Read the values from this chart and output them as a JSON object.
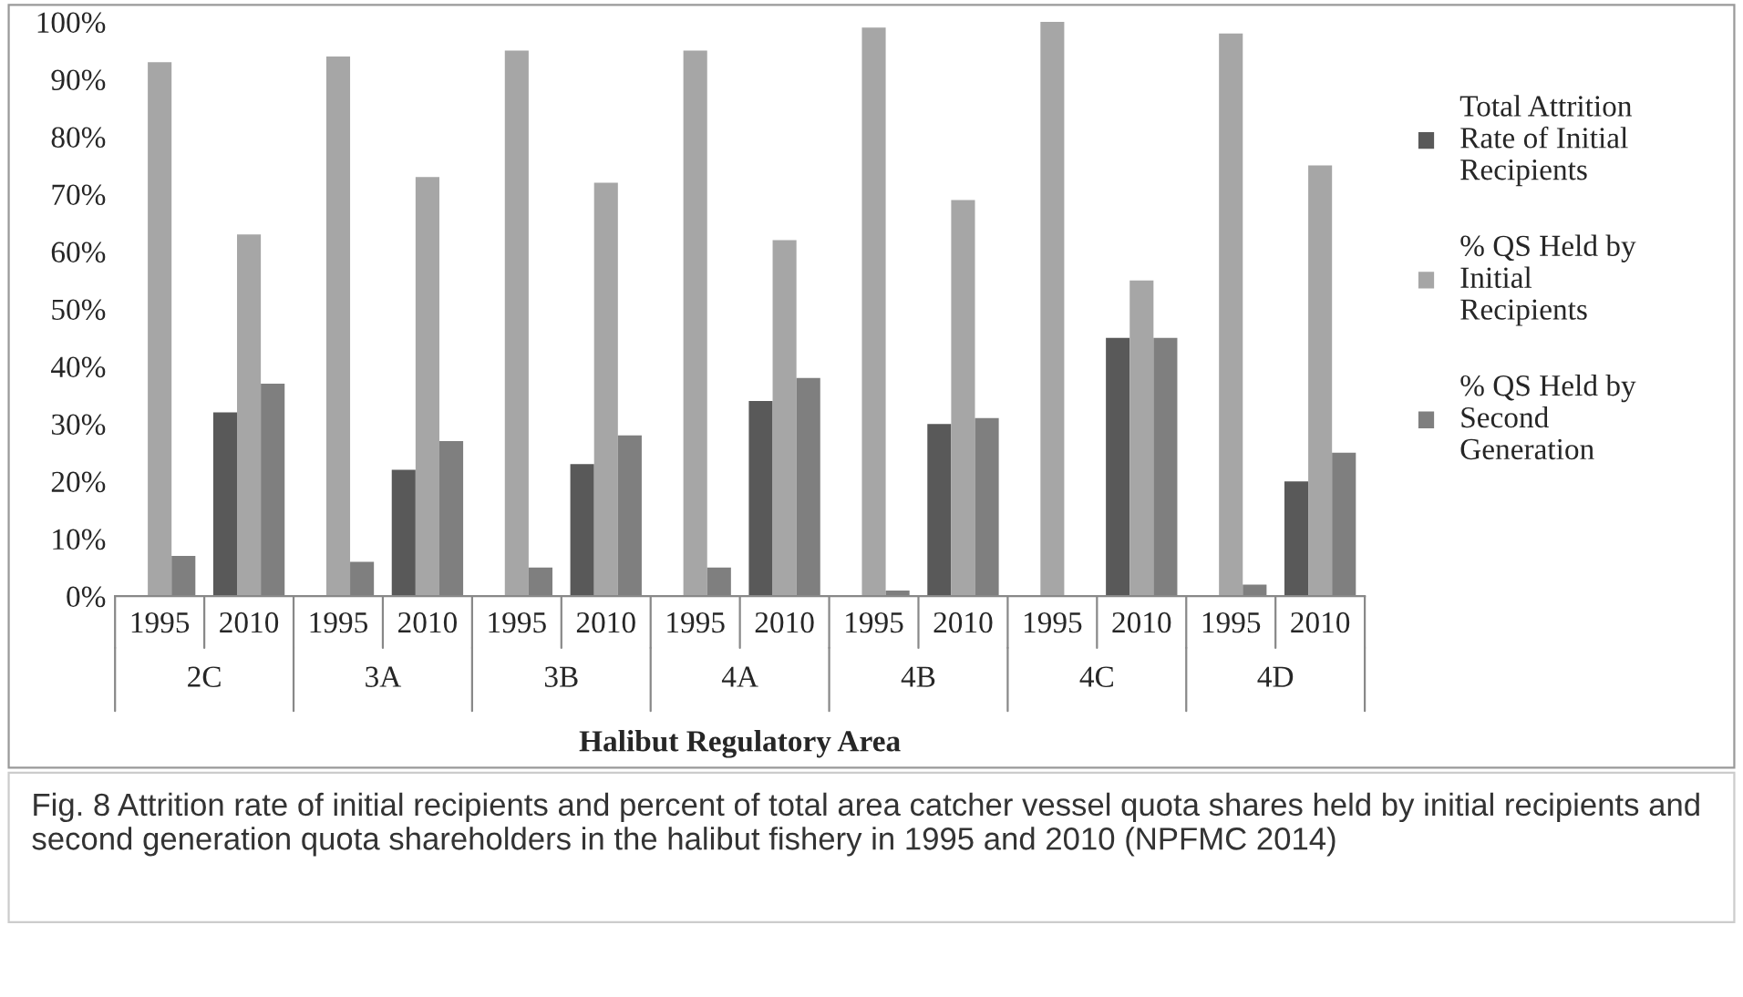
{
  "chart_data": {
    "type": "bar",
    "xlabel": "Halibut Regulatory Area",
    "categories": [
      "1995",
      "2010",
      "1995",
      "2010",
      "1995",
      "2010",
      "1995",
      "2010",
      "1995",
      "2010",
      "1995",
      "2010",
      "1995",
      "2010"
    ],
    "series": [
      {
        "name": "Total Attrition\nRate of Initial\nRecipients",
        "color": "#595959",
        "values": [
          0,
          32,
          0,
          22,
          0,
          23,
          0,
          34,
          0,
          30,
          0,
          45,
          0,
          20
        ]
      },
      {
        "name": "% QS Held by\nInitial\nRecipients",
        "color": "#a6a6a6",
        "values": [
          93,
          63,
          94,
          73,
          95,
          72,
          95,
          62,
          99,
          69,
          100,
          55,
          98,
          75
        ]
      },
      {
        "name": "% QS Held by\nSecond\nGeneration",
        "color": "#7f7f7f",
        "values": [
          7,
          37,
          6,
          27,
          5,
          28,
          5,
          38,
          1,
          31,
          0,
          45,
          2,
          25
        ]
      }
    ],
    "ylim": [
      0,
      100
    ],
    "yticks": [
      {
        "value": 0,
        "label": "0%"
      },
      {
        "value": 10,
        "label": "10%"
      },
      {
        "value": 20,
        "label": "20%"
      },
      {
        "value": 30,
        "label": "30%"
      },
      {
        "value": 40,
        "label": "40%"
      },
      {
        "value": 50,
        "label": "50%"
      },
      {
        "value": 60,
        "label": "60%"
      },
      {
        "value": 70,
        "label": "70%"
      },
      {
        "value": 80,
        "label": "80%"
      },
      {
        "value": 90,
        "label": "90%"
      },
      {
        "value": 100,
        "label": "100%"
      }
    ],
    "legend": "right",
    "grid": false,
    "annotations": [
      "2C",
      "3A",
      "3B",
      "4A",
      "4B",
      "4C",
      "4D",
      "Fig. 8 Attrition rate of initial recipients and percent of total area catcher vessel quota shares held by initial recipients and second generation quota shareholders in the halibut fishery in 1995 and 2010 (NPFMC 2014)"
    ]
  }
}
